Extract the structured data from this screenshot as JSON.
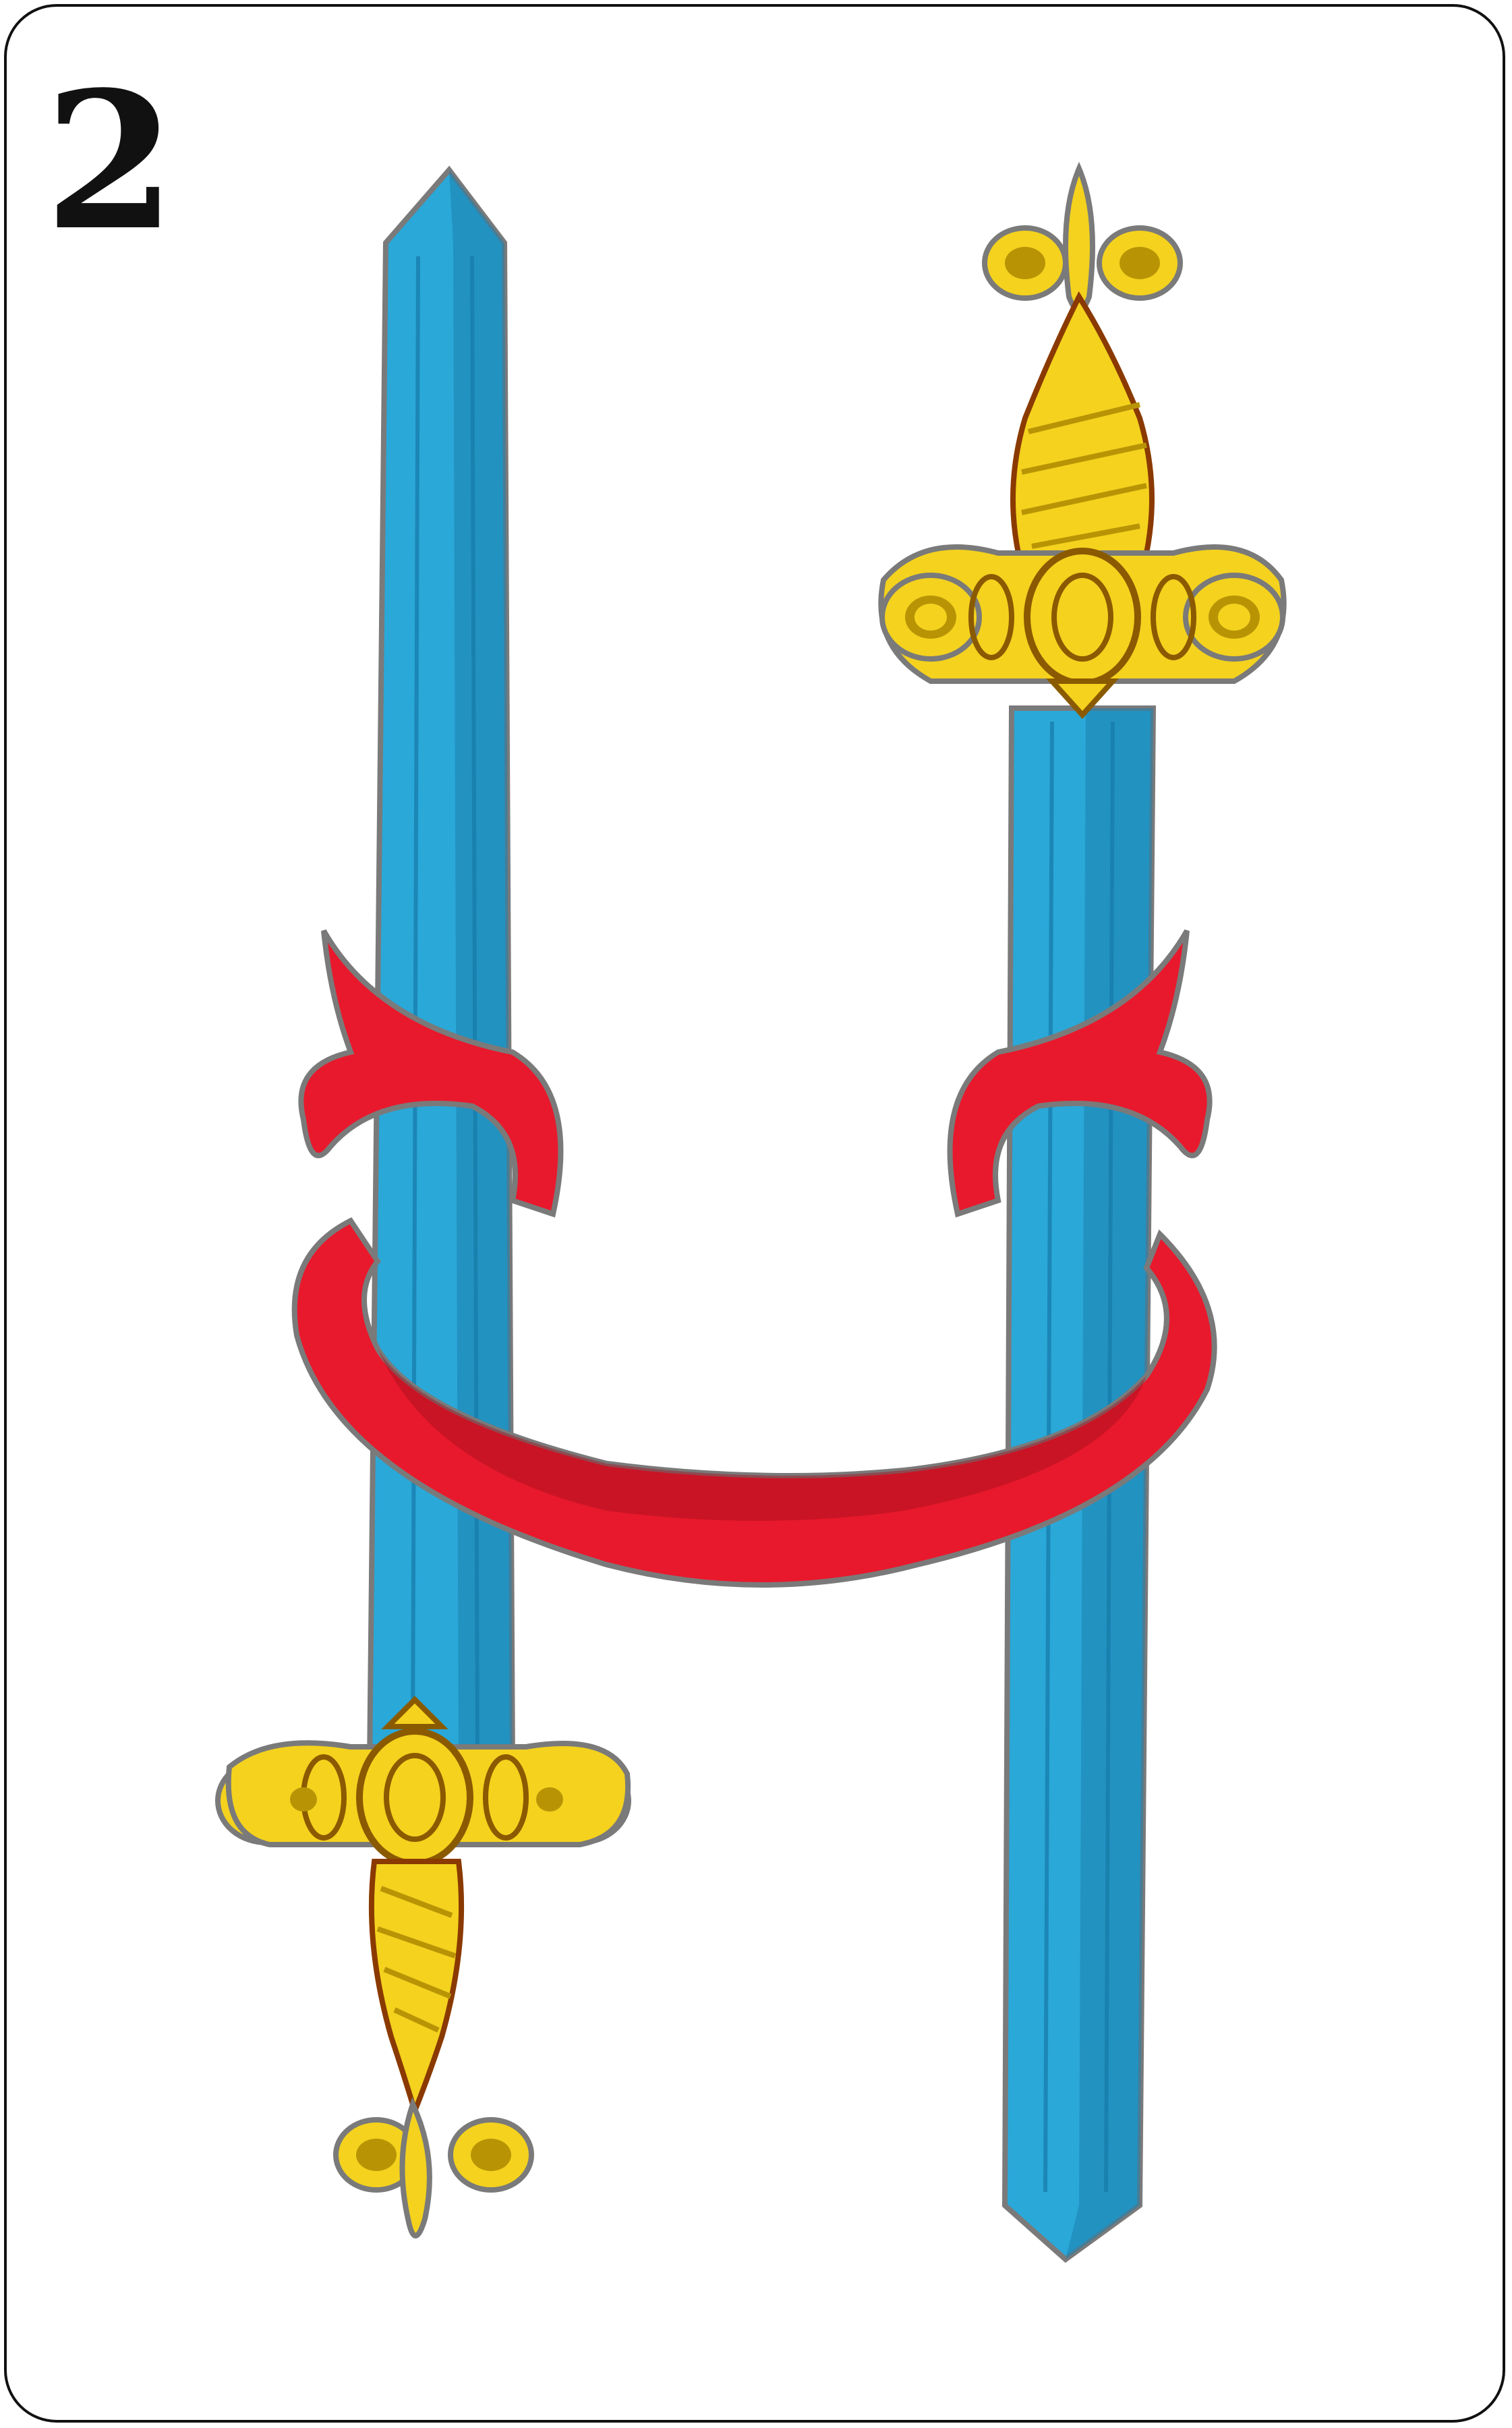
{
  "card": {
    "rank": "2",
    "suit_icon": "sword-icon"
  },
  "colors": {
    "blade": "#2aa8d8",
    "blade_dark": "#1b7fae",
    "hilt": "#f4d21e",
    "hilt_dark": "#b89405",
    "ribbon": "#e8192c",
    "ribbon_dark": "#a5101d",
    "outline": "#7a7a7a"
  }
}
